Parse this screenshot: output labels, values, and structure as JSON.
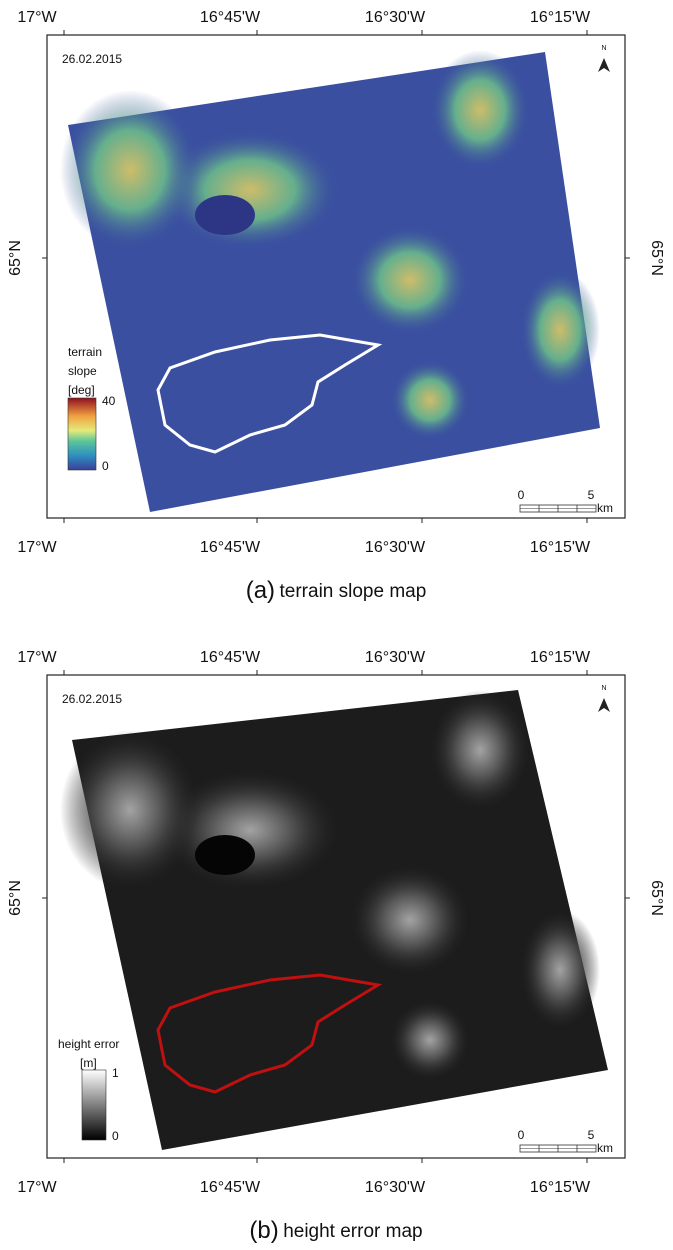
{
  "panels": [
    {
      "date": "26.02.2015",
      "top_labels": [
        "17°W",
        "16°45'W",
        "16°30'W",
        "16°15'W"
      ],
      "bottom_labels": [
        "17°W",
        "16°45'W",
        "16°30'W",
        "16°15'W"
      ],
      "left_label": "65°N",
      "right_label": "65°N",
      "legend": {
        "title": [
          "terrain",
          "slope",
          "[deg]"
        ],
        "max": "40",
        "min": "0"
      },
      "scale": {
        "start": "0",
        "end": "5",
        "unit": "km"
      },
      "caption": {
        "label": "(a)",
        "text": "terrain slope map"
      }
    },
    {
      "date": "26.02.2015",
      "top_labels": [
        "17°W",
        "16°45'W",
        "16°30'W",
        "16°15'W"
      ],
      "bottom_labels": [
        "17°W",
        "16°45'W",
        "16°30'W",
        "16°15'W"
      ],
      "left_label": "65°N",
      "right_label": "65°N",
      "legend": {
        "title": [
          "height error",
          "[m]"
        ],
        "max": "1",
        "min": "0"
      },
      "scale": {
        "start": "0",
        "end": "5",
        "unit": "km"
      },
      "caption": {
        "label": "(b)",
        "text": "height error map"
      }
    }
  ]
}
